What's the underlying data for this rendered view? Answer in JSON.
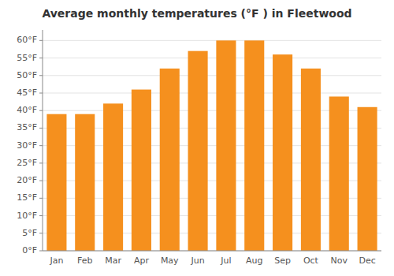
{
  "chart_data": {
    "type": "bar",
    "title": "Average monthly temperatures (°F ) in Fleetwood",
    "categories": [
      "Jan",
      "Feb",
      "Mar",
      "Apr",
      "May",
      "Jun",
      "Jul",
      "Aug",
      "Sep",
      "Oct",
      "Nov",
      "Dec"
    ],
    "values": [
      39,
      39,
      42,
      46,
      52,
      57,
      60,
      60,
      56,
      52,
      44,
      41
    ],
    "color": "#F5901E",
    "ylim": [
      0,
      63
    ],
    "yticks": [
      {
        "value": 0,
        "label": "0°F"
      },
      {
        "value": 5,
        "label": "5°F"
      },
      {
        "value": 10,
        "label": "10°F"
      },
      {
        "value": 15,
        "label": "15°F"
      },
      {
        "value": 20,
        "label": "20°F"
      },
      {
        "value": 25,
        "label": "25°F"
      },
      {
        "value": 30,
        "label": "30°F"
      },
      {
        "value": 35,
        "label": "35°F"
      },
      {
        "value": 40,
        "label": "40°F"
      },
      {
        "value": 45,
        "label": "45°F"
      },
      {
        "value": 50,
        "label": "50°F"
      },
      {
        "value": 55,
        "label": "55°F"
      },
      {
        "value": 60,
        "label": "60°F"
      }
    ],
    "grid": true
  }
}
